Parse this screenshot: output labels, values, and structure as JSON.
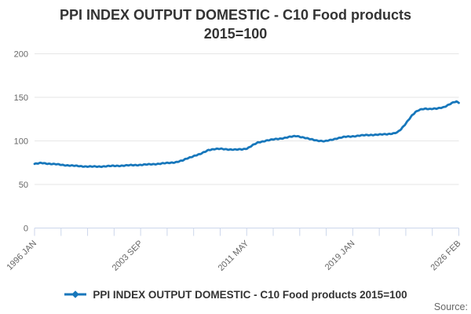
{
  "title": {
    "line1": "PPI INDEX OUTPUT DOMESTIC - C10 Food products",
    "line2": "2015=100"
  },
  "legend": {
    "label": "PPI INDEX OUTPUT DOMESTIC - C10 Food products 2015=100"
  },
  "source_label": "Source:",
  "colors": {
    "series": "#1777bb",
    "grid": "#e6e6e6",
    "axis": "#ccd6eb",
    "title_text": "#333333",
    "tick_text": "#666666",
    "source_text": "#666666"
  },
  "chart_data": {
    "type": "line",
    "title": "PPI INDEX OUTPUT DOMESTIC - C10 Food products 2015=100",
    "xlabel": "",
    "ylabel": "",
    "grid": true,
    "legend_position": "bottom",
    "x_axis": {
      "start": "1996-01",
      "end": "2026-02",
      "tick_count": 17,
      "label_every": 4,
      "tick_labels": [
        "1996 JAN",
        "2003 SEP",
        "2011 MAY",
        "2019 JAN",
        "2026 FEB"
      ]
    },
    "y_axis": {
      "min": 0,
      "max": 200,
      "ticks": [
        0,
        50,
        100,
        150,
        200
      ]
    },
    "series": [
      {
        "name": "PPI INDEX OUTPUT DOMESTIC - C10 Food products 2015=100",
        "color": "#1777bb",
        "frequency": "monthly",
        "points": [
          [
            "1996-01",
            73.6
          ],
          [
            "1996-07",
            74.6
          ],
          [
            "1997-01",
            73.9
          ],
          [
            "1997-07",
            73.2
          ],
          [
            "1998-01",
            72.4
          ],
          [
            "1998-07",
            71.8
          ],
          [
            "1999-01",
            71.2
          ],
          [
            "1999-07",
            70.8
          ],
          [
            "2000-01",
            70.5
          ],
          [
            "2000-07",
            70.5
          ],
          [
            "2001-01",
            70.9
          ],
          [
            "2001-07",
            71.2
          ],
          [
            "2002-01",
            71.5
          ],
          [
            "2002-07",
            71.8
          ],
          [
            "2003-01",
            72.2
          ],
          [
            "2003-07",
            72.5
          ],
          [
            "2004-01",
            72.9
          ],
          [
            "2004-07",
            73.4
          ],
          [
            "2005-01",
            74.0
          ],
          [
            "2005-07",
            74.7
          ],
          [
            "2006-01",
            75.6
          ],
          [
            "2006-07",
            77.4
          ],
          [
            "2006-11",
            80.0
          ],
          [
            "2007-05",
            83.0
          ],
          [
            "2007-10",
            84.8
          ],
          [
            "2008-01",
            86.8
          ],
          [
            "2008-05",
            89.7
          ],
          [
            "2008-10",
            90.6
          ],
          [
            "2009-04",
            90.8
          ],
          [
            "2009-10",
            90.3
          ],
          [
            "2010-04",
            89.9
          ],
          [
            "2010-10",
            90.4
          ],
          [
            "2011-02",
            91.5
          ],
          [
            "2011-07",
            95.3
          ],
          [
            "2011-11",
            98.0
          ],
          [
            "2012-06",
            100.4
          ],
          [
            "2013-01",
            101.8
          ],
          [
            "2013-07",
            102.8
          ],
          [
            "2014-01",
            104.3
          ],
          [
            "2014-08",
            105.7
          ],
          [
            "2015-01",
            104.2
          ],
          [
            "2015-07",
            102.1
          ],
          [
            "2016-01",
            100.6
          ],
          [
            "2016-08",
            99.5
          ],
          [
            "2017-01",
            101.0
          ],
          [
            "2017-07",
            103.2
          ],
          [
            "2018-01",
            104.6
          ],
          [
            "2018-07",
            105.2
          ],
          [
            "2019-01",
            106.0
          ],
          [
            "2019-07",
            106.6
          ],
          [
            "2020-01",
            107.0
          ],
          [
            "2020-07",
            107.2
          ],
          [
            "2021-01",
            107.8
          ],
          [
            "2021-07",
            108.8
          ],
          [
            "2021-10",
            110.0
          ],
          [
            "2022-01",
            113.5
          ],
          [
            "2022-04",
            118.5
          ],
          [
            "2022-07",
            124.0
          ],
          [
            "2022-10",
            129.0
          ],
          [
            "2023-01",
            132.8
          ],
          [
            "2023-04",
            135.2
          ],
          [
            "2023-07",
            136.6
          ],
          [
            "2023-10",
            137.2
          ],
          [
            "2024-01",
            136.6
          ],
          [
            "2024-07",
            136.9
          ],
          [
            "2025-01",
            138.8
          ],
          [
            "2025-04",
            140.6
          ],
          [
            "2025-07",
            142.6
          ],
          [
            "2025-10",
            144.4
          ],
          [
            "2025-12",
            145.0
          ],
          [
            "2026-01",
            144.6
          ],
          [
            "2026-02",
            143.6
          ]
        ]
      }
    ]
  }
}
